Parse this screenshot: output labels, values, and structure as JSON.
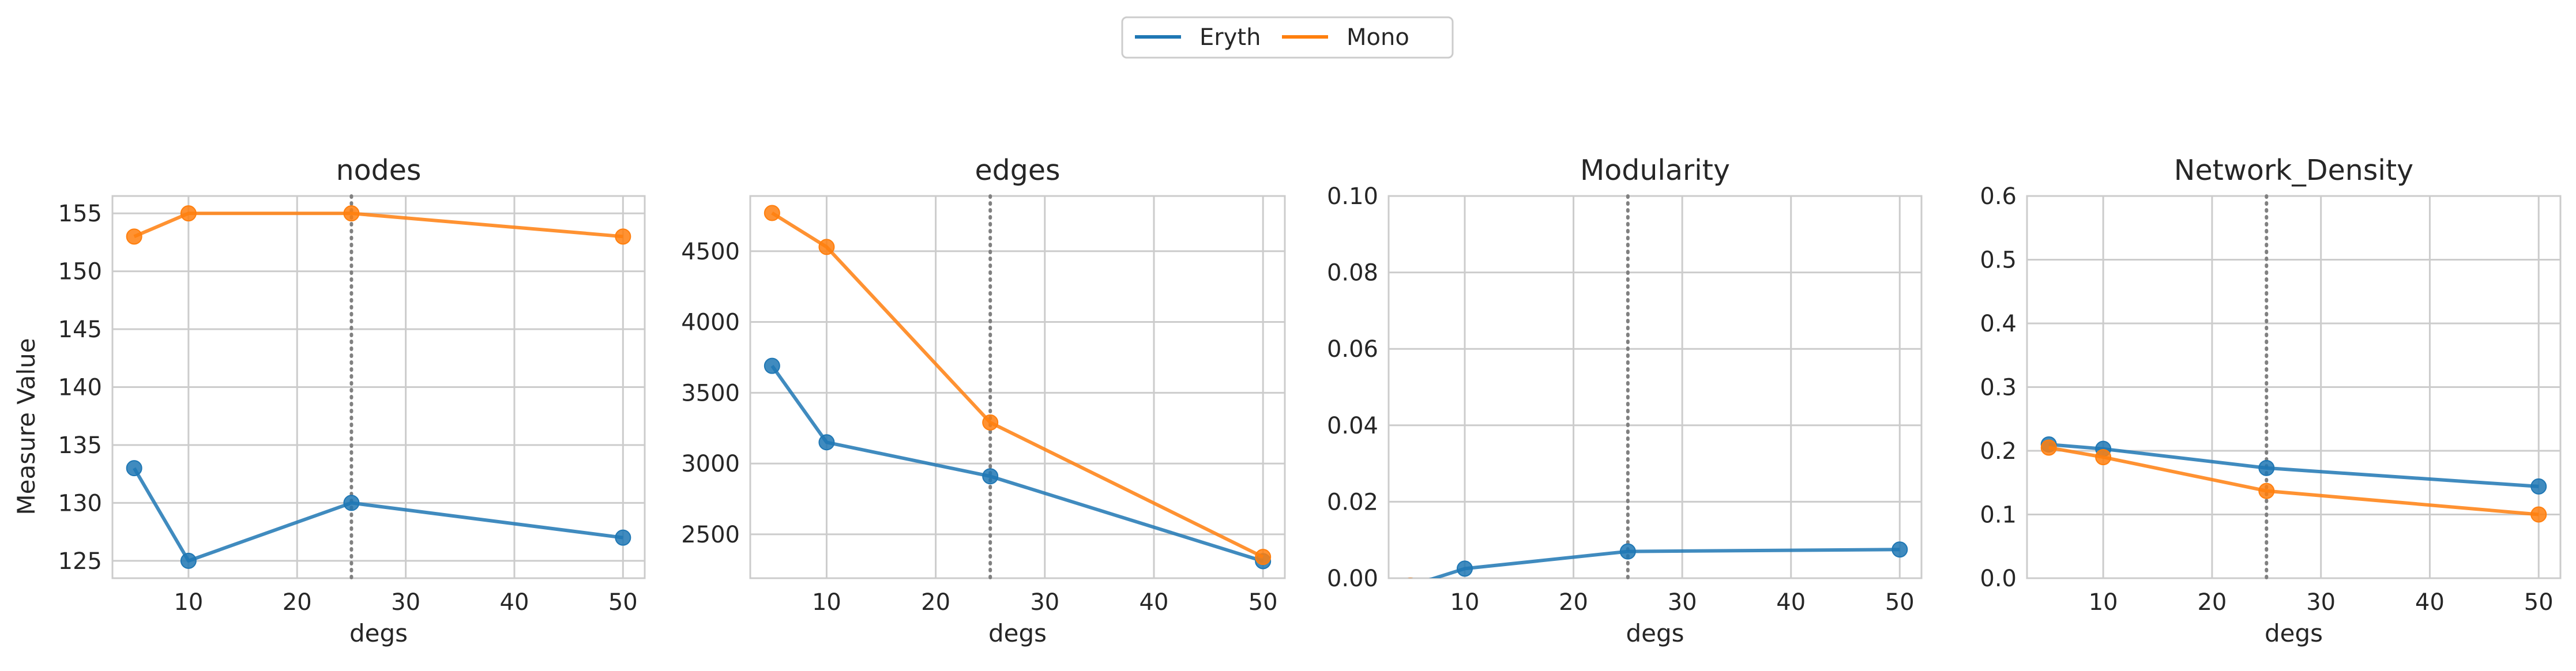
{
  "legend": {
    "entries": [
      {
        "label": "Eryth",
        "color": "#1f77b4"
      },
      {
        "label": "Mono",
        "color": "#ff7f0e"
      }
    ]
  },
  "shared_ylabel": "Measure Value",
  "vline_x": 25,
  "chart_data": [
    {
      "type": "line",
      "title": "nodes",
      "xlabel": "degs",
      "ylabel": "Measure Value",
      "x": [
        5,
        10,
        25,
        50
      ],
      "xlim": [
        3,
        52
      ],
      "ylim": [
        123.5,
        156.5
      ],
      "xticks": [
        10,
        20,
        30,
        40,
        50
      ],
      "yticks": [
        125,
        130,
        135,
        140,
        145,
        150,
        155
      ],
      "grid": true,
      "series": [
        {
          "name": "Eryth",
          "values": [
            133,
            125,
            130,
            127
          ]
        },
        {
          "name": "Mono",
          "values": [
            153,
            155,
            155,
            153
          ]
        }
      ]
    },
    {
      "type": "line",
      "title": "edges",
      "xlabel": "degs",
      "ylabel": "",
      "x": [
        5,
        10,
        25,
        50
      ],
      "xlim": [
        3,
        52
      ],
      "ylim": [
        2190,
        4890
      ],
      "xticks": [
        10,
        20,
        30,
        40,
        50
      ],
      "yticks": [
        2500,
        3000,
        3500,
        4000,
        4500
      ],
      "grid": true,
      "series": [
        {
          "name": "Eryth",
          "values": [
            3690,
            3150,
            2910,
            2310
          ]
        },
        {
          "name": "Mono",
          "values": [
            4770,
            4530,
            3290,
            2340
          ]
        }
      ]
    },
    {
      "type": "line",
      "title": "Modularity",
      "xlabel": "degs",
      "ylabel": "",
      "x": [
        5,
        10,
        25,
        50
      ],
      "xlim": [
        3,
        52
      ],
      "ylim": [
        0,
        0.1
      ],
      "xticks": [
        10,
        20,
        30,
        40,
        50
      ],
      "yticks": [
        0.0,
        0.02,
        0.04,
        0.06,
        0.08,
        0.1
      ],
      "ytick_labels": [
        "0.00",
        "0.02",
        "0.04",
        "0.06",
        "0.08",
        "0.10"
      ],
      "grid": true,
      "series": [
        {
          "name": "Eryth",
          "values": [
            -0.002,
            0.0025,
            0.007,
            0.0075
          ]
        },
        {
          "name": "Mono",
          "values": [
            -0.002,
            null,
            null,
            null
          ]
        }
      ]
    },
    {
      "type": "line",
      "title": "Network_Density",
      "xlabel": "degs",
      "ylabel": "",
      "x": [
        5,
        10,
        25,
        50
      ],
      "xlim": [
        3,
        52
      ],
      "ylim": [
        0,
        0.6
      ],
      "xticks": [
        10,
        20,
        30,
        40,
        50
      ],
      "yticks": [
        0.0,
        0.1,
        0.2,
        0.3,
        0.4,
        0.5,
        0.6
      ],
      "ytick_labels": [
        "0.0",
        "0.1",
        "0.2",
        "0.3",
        "0.4",
        "0.5",
        "0.6"
      ],
      "grid": true,
      "series": [
        {
          "name": "Eryth",
          "values": [
            0.21,
            0.203,
            0.173,
            0.144
          ]
        },
        {
          "name": "Mono",
          "values": [
            0.205,
            0.19,
            0.137,
            0.1
          ]
        }
      ]
    }
  ]
}
